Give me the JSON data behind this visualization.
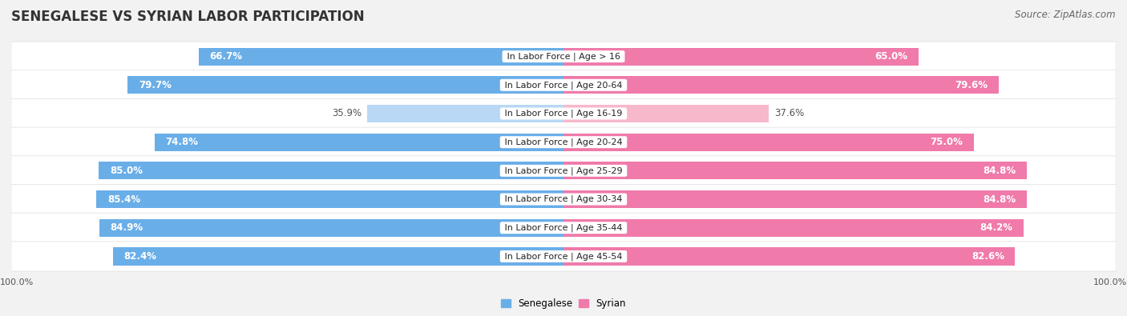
{
  "title": "SENEGALESE VS SYRIAN LABOR PARTICIPATION",
  "source": "Source: ZipAtlas.com",
  "categories": [
    "In Labor Force | Age > 16",
    "In Labor Force | Age 20-64",
    "In Labor Force | Age 16-19",
    "In Labor Force | Age 20-24",
    "In Labor Force | Age 25-29",
    "In Labor Force | Age 30-34",
    "In Labor Force | Age 35-44",
    "In Labor Force | Age 45-54"
  ],
  "senegalese": [
    66.7,
    79.7,
    35.9,
    74.8,
    85.0,
    85.4,
    84.9,
    82.4
  ],
  "syrian": [
    65.0,
    79.6,
    37.6,
    75.0,
    84.8,
    84.8,
    84.2,
    82.6
  ],
  "senegalese_color": "#6aaee8",
  "senegalese_color_light": "#b8d8f5",
  "syrian_color": "#f07aaa",
  "syrian_color_light": "#f8b8cc",
  "label_color_dark": "#555555",
  "label_color_white": "#ffffff",
  "background_color": "#f2f2f2",
  "row_bg_light": "#f8f8f8",
  "row_bg_dark": "#eeeeee",
  "bar_height": 0.62,
  "max_value": 100.0,
  "legend_labels": [
    "Senegalese",
    "Syrian"
  ],
  "title_fontsize": 12,
  "source_fontsize": 8.5,
  "value_fontsize": 8.5,
  "category_fontsize": 8,
  "axis_label_fontsize": 8
}
